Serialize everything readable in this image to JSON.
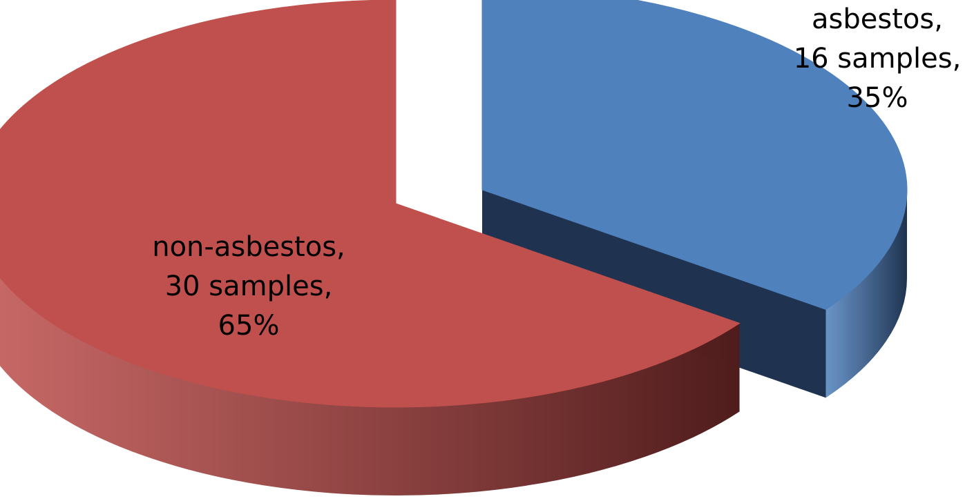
{
  "chart_data": {
    "type": "pie",
    "title": "",
    "style": "3d-exploded",
    "slices": [
      {
        "name": "asbestos",
        "samples": 16,
        "percent": 35,
        "color": "#4f81bd",
        "side_color": "#1f3350",
        "label_lines": [
          "asbestos,",
          "16 samples,",
          "35%"
        ]
      },
      {
        "name": "non-asbestos",
        "samples": 30,
        "percent": 65,
        "color": "#c0504d",
        "side_color": "#4f1c1c",
        "label_lines": [
          "non-asbestos,",
          "30 samples,",
          "65%"
        ]
      }
    ]
  }
}
